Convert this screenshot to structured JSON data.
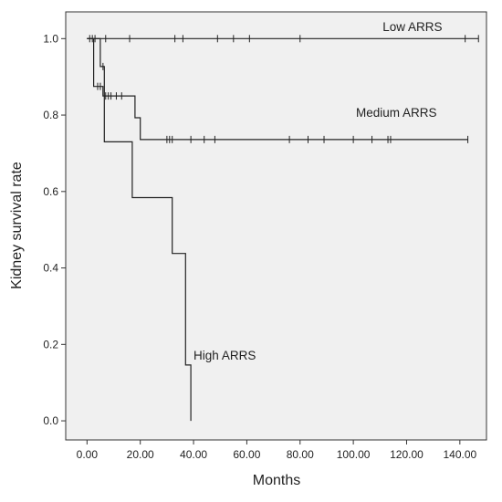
{
  "chart_data": {
    "type": "line",
    "title": "",
    "xlabel": "Months",
    "ylabel": "Kidney survival rate",
    "xlim": [
      -8,
      150
    ],
    "ylim": [
      -0.05,
      1.07
    ],
    "x_ticks": [
      0,
      20,
      40,
      60,
      80,
      100,
      120,
      140
    ],
    "x_tick_labels": [
      "0.00",
      "20.00",
      "40.00",
      "60.00",
      "80.00",
      "100.00",
      "120.00",
      "140.00"
    ],
    "y_ticks": [
      0.0,
      0.2,
      0.4,
      0.6,
      0.8,
      1.0
    ],
    "y_tick_labels": [
      "0.0",
      "0.2",
      "0.4",
      "0.6",
      "0.8",
      "1.0"
    ],
    "grid": false,
    "step": true,
    "series": [
      {
        "name": "Low ARRS",
        "label_at": [
          111,
          1.02
        ],
        "steps": [
          [
            0,
            1.0
          ],
          [
            147,
            1.0
          ]
        ],
        "censored": [
          [
            1,
            1.0
          ],
          [
            2,
            1.0
          ],
          [
            3,
            1.0
          ],
          [
            7,
            1.0
          ],
          [
            16,
            1.0
          ],
          [
            33,
            1.0
          ],
          [
            36,
            1.0
          ],
          [
            49,
            1.0
          ],
          [
            55,
            1.0
          ],
          [
            61,
            1.0
          ],
          [
            80,
            1.0
          ],
          [
            142,
            1.0
          ],
          [
            147,
            1.0
          ]
        ]
      },
      {
        "name": "Medium ARRS",
        "label_at": [
          101,
          0.795
        ],
        "steps": [
          [
            0,
            1.0
          ],
          [
            2.5,
            1.0
          ],
          [
            2.5,
            0.875
          ],
          [
            6,
            0.875
          ],
          [
            6,
            0.85
          ],
          [
            18,
            0.85
          ],
          [
            18,
            0.793
          ],
          [
            20,
            0.793
          ],
          [
            20,
            0.736
          ],
          [
            143,
            0.736
          ]
        ],
        "censored": [
          [
            4,
            0.875
          ],
          [
            5,
            0.875
          ],
          [
            7,
            0.85
          ],
          [
            8,
            0.85
          ],
          [
            9,
            0.85
          ],
          [
            11,
            0.85
          ],
          [
            13,
            0.85
          ],
          [
            30,
            0.736
          ],
          [
            31,
            0.736
          ],
          [
            32,
            0.736
          ],
          [
            39,
            0.736
          ],
          [
            44,
            0.736
          ],
          [
            48,
            0.736
          ],
          [
            76,
            0.736
          ],
          [
            83,
            0.736
          ],
          [
            89,
            0.736
          ],
          [
            100,
            0.736
          ],
          [
            107,
            0.736
          ],
          [
            113,
            0.736
          ],
          [
            114,
            0.736
          ],
          [
            143,
            0.736
          ]
        ]
      },
      {
        "name": "High ARRS",
        "label_at": [
          40,
          0.16
        ],
        "steps": [
          [
            0,
            1.0
          ],
          [
            5,
            1.0
          ],
          [
            5,
            0.927
          ],
          [
            6.5,
            0.927
          ],
          [
            6.5,
            0.73
          ],
          [
            17,
            0.73
          ],
          [
            17,
            0.584
          ],
          [
            32,
            0.584
          ],
          [
            32,
            0.438
          ],
          [
            37,
            0.438
          ],
          [
            37,
            0.146
          ],
          [
            39,
            0.146
          ],
          [
            39,
            0.0
          ]
        ],
        "censored": [
          [
            6,
            0.927
          ]
        ]
      }
    ]
  }
}
